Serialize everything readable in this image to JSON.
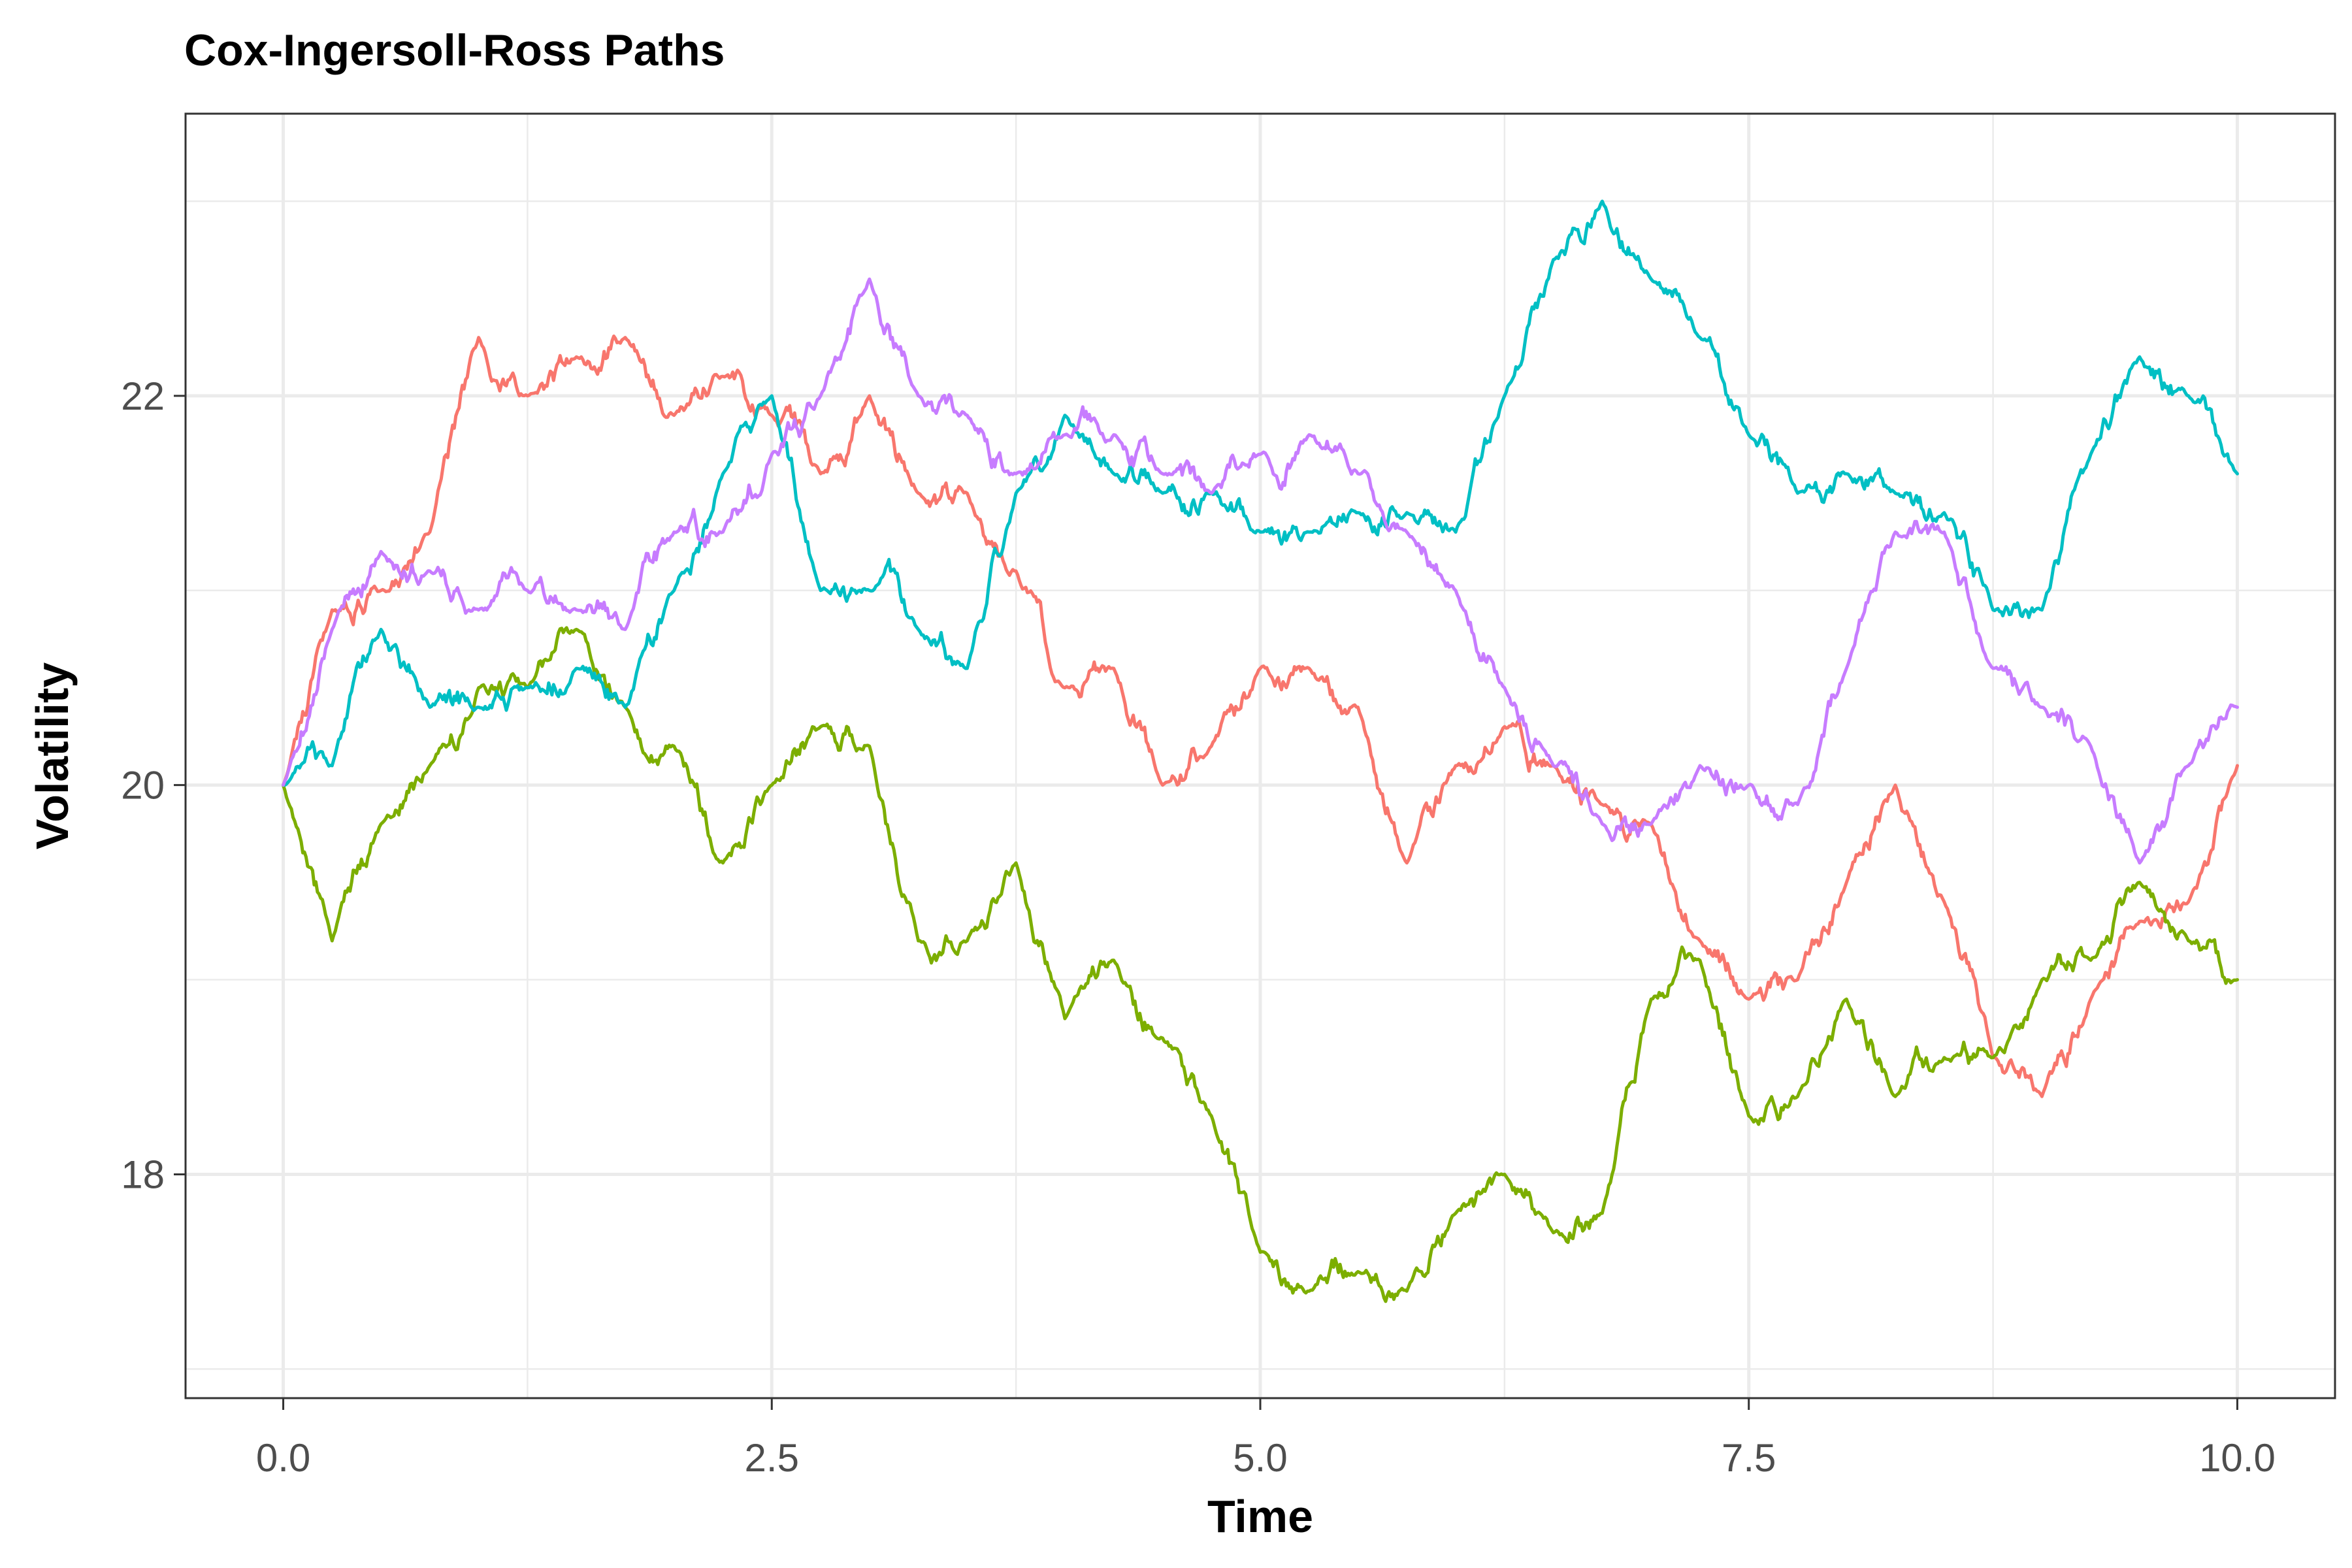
{
  "chart_data": {
    "type": "line",
    "title": "Cox-Ingersoll-Ross Paths",
    "xlabel": "Time",
    "ylabel": "Volatility",
    "xlim": [
      -0.5,
      10.5
    ],
    "ylim": [
      16.85,
      23.45
    ],
    "x_ticks": [
      0.0,
      2.5,
      5.0,
      7.5,
      10.0
    ],
    "x_tick_labels": [
      "0.0",
      "2.5",
      "5.0",
      "7.5",
      "10.0"
    ],
    "y_ticks": [
      18,
      20,
      22
    ],
    "y_tick_labels": [
      "18",
      "20",
      "22"
    ],
    "x_minor": [
      1.25,
      3.75,
      6.25,
      8.75
    ],
    "y_minor": [
      17.0,
      19.0,
      21.0,
      23.0
    ],
    "grid": true,
    "legend": "none",
    "x": [
      0,
      0.25,
      0.5,
      0.75,
      1.0,
      1.25,
      1.5,
      1.75,
      2.0,
      2.25,
      2.5,
      2.75,
      3.0,
      3.25,
      3.5,
      3.75,
      4.0,
      4.25,
      4.5,
      4.75,
      5.0,
      5.25,
      5.5,
      5.75,
      6.0,
      6.25,
      6.5,
      6.75,
      7.0,
      7.25,
      7.5,
      7.75,
      8.0,
      8.25,
      8.5,
      8.75,
      9.0,
      9.25,
      9.5,
      9.75,
      10.0
    ],
    "series": [
      {
        "color": "#F8766D",
        "values": [
          20.0,
          20.9,
          21.0,
          21.3,
          22.3,
          22.0,
          22.2,
          22.3,
          21.9,
          22.1,
          21.9,
          21.6,
          22.0,
          21.5,
          21.5,
          21.1,
          20.5,
          20.6,
          20.0,
          20.2,
          20.6,
          20.6,
          20.4,
          19.6,
          20.1,
          20.3,
          20.1,
          19.9,
          19.8,
          19.2,
          18.9,
          19.0,
          19.5,
          20.0,
          19.4,
          18.6,
          18.4,
          18.9,
          19.3,
          19.4,
          20.1
        ]
      },
      {
        "color": "#7CAE00",
        "values": [
          20.0,
          19.2,
          19.8,
          20.1,
          20.5,
          20.5,
          20.8,
          20.4,
          20.2,
          19.6,
          20.0,
          20.3,
          20.2,
          19.2,
          19.2,
          19.6,
          18.8,
          19.1,
          18.7,
          18.3,
          17.6,
          17.4,
          17.5,
          17.4,
          17.8,
          18.0,
          17.7,
          17.8,
          18.9,
          19.1,
          18.3,
          18.4,
          18.9,
          18.4,
          18.6,
          18.6,
          19.0,
          19.1,
          19.5,
          19.2,
          19.0
        ]
      },
      {
        "color": "#00BFC4",
        "values": [
          20.0,
          20.1,
          20.8,
          20.4,
          20.4,
          20.5,
          20.6,
          20.4,
          21.0,
          21.6,
          22.0,
          21.0,
          21.0,
          20.8,
          20.6,
          21.5,
          21.9,
          21.6,
          21.5,
          21.5,
          21.3,
          21.3,
          21.4,
          21.4,
          21.3,
          22.0,
          22.7,
          23.0,
          22.6,
          22.3,
          21.8,
          21.5,
          21.6,
          21.5,
          21.4,
          20.9,
          20.9,
          21.7,
          22.2,
          22.0,
          21.6
        ]
      },
      {
        "color": "#C77CFF",
        "values": [
          20.0,
          20.8,
          21.2,
          21.1,
          20.9,
          21.0,
          20.9,
          20.8,
          21.3,
          21.3,
          21.7,
          22.0,
          22.6,
          22.0,
          21.9,
          21.6,
          21.8,
          21.8,
          21.6,
          21.5,
          21.7,
          21.8,
          21.6,
          21.3,
          21.0,
          20.5,
          20.1,
          19.8,
          19.8,
          20.1,
          20.0,
          19.9,
          20.6,
          21.3,
          21.3,
          20.6,
          20.4,
          20.2,
          19.6,
          20.1,
          20.4
        ]
      }
    ]
  }
}
